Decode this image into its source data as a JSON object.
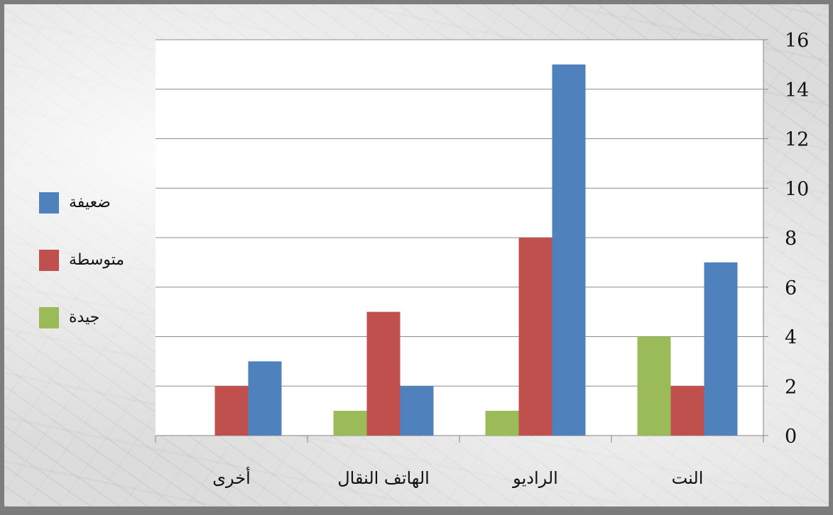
{
  "chart_data": {
    "type": "bar",
    "categories": [
      "النت",
      "الراديو",
      "الهاتف النقال",
      "أخرى"
    ],
    "series": [
      {
        "name": "جيدة",
        "color": "#9bbb59",
        "values": [
          4,
          1,
          1,
          0
        ]
      },
      {
        "name": "متوسطة",
        "color": "#c0504d",
        "values": [
          2,
          8,
          5,
          2
        ]
      },
      {
        "name": "ضعيفة",
        "color": "#4f81bd",
        "values": [
          7,
          15,
          2,
          3
        ]
      }
    ],
    "yticks": [
      "0",
      "2",
      "4",
      "6",
      "8",
      "10",
      "12",
      "14",
      "16"
    ],
    "ylim": [
      0,
      16
    ],
    "y_axis_position": "right",
    "category_order": "right-to-left",
    "grid": true,
    "legend_position": "left",
    "title": "",
    "xlabel": "",
    "ylabel": ""
  }
}
